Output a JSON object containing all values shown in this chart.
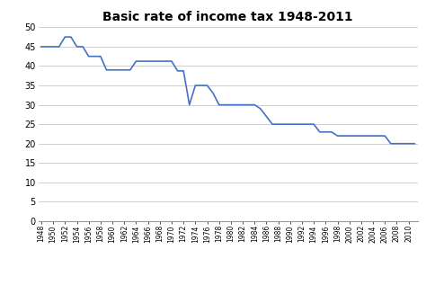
{
  "title": "Basic rate of income tax 1948-2011",
  "years": [
    1948,
    1949,
    1950,
    1951,
    1952,
    1953,
    1954,
    1955,
    1956,
    1957,
    1958,
    1959,
    1960,
    1961,
    1962,
    1963,
    1964,
    1965,
    1966,
    1967,
    1968,
    1969,
    1970,
    1971,
    1972,
    1973,
    1974,
    1975,
    1976,
    1977,
    1978,
    1979,
    1980,
    1981,
    1982,
    1983,
    1984,
    1985,
    1986,
    1987,
    1988,
    1989,
    1990,
    1991,
    1992,
    1993,
    1994,
    1995,
    1996,
    1997,
    1998,
    1999,
    2000,
    2001,
    2002,
    2003,
    2004,
    2005,
    2006,
    2007,
    2008,
    2009,
    2010,
    2011
  ],
  "values": [
    45,
    45,
    45,
    45,
    47.5,
    47.5,
    45,
    45,
    42.5,
    42.5,
    42.5,
    39,
    39,
    39,
    39,
    39,
    41.25,
    41.25,
    41.25,
    41.25,
    41.25,
    41.25,
    41.25,
    38.75,
    38.75,
    30,
    35,
    35,
    35,
    33,
    30,
    30,
    30,
    30,
    30,
    30,
    30,
    29,
    27,
    25,
    25,
    25,
    25,
    25,
    25,
    25,
    25,
    23,
    23,
    23,
    22,
    22,
    22,
    22,
    22,
    22,
    22,
    22,
    22,
    20,
    20,
    20,
    20,
    20
  ],
  "line_color": "#4472c4",
  "line_width": 1.2,
  "ylim": [
    0,
    50
  ],
  "yticks": [
    0,
    5,
    10,
    15,
    20,
    25,
    30,
    35,
    40,
    45,
    50
  ],
  "background_color": "#ffffff",
  "grid_color": "#c8c8c8",
  "title_fontsize": 10,
  "ytick_fontsize": 7,
  "xtick_fontsize": 5.5
}
